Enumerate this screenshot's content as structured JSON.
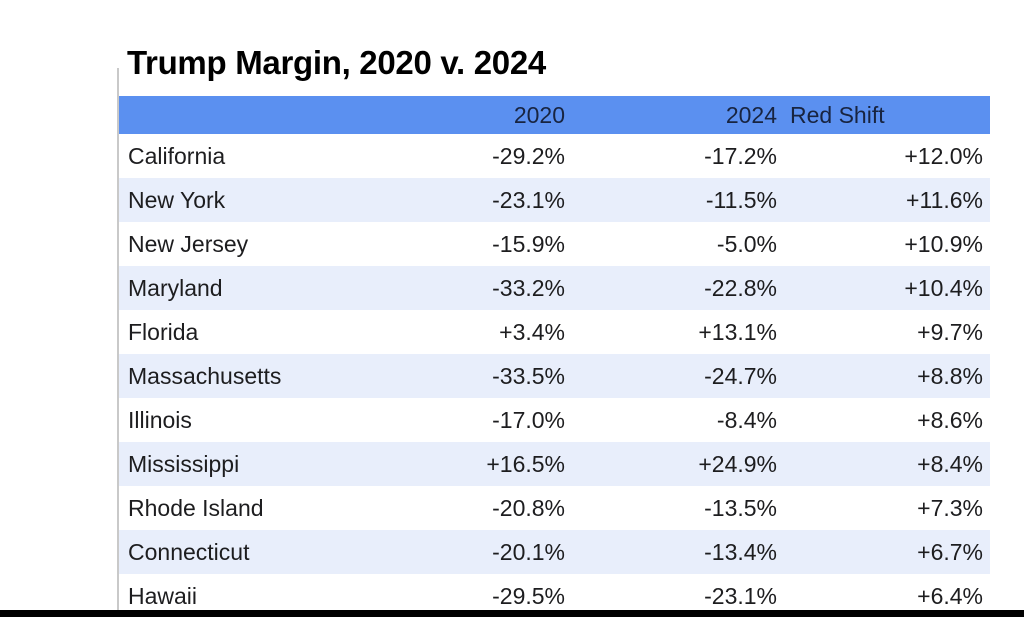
{
  "title": "Trump Margin, 2020 v. 2024",
  "chart_data": {
    "type": "table",
    "title": "Trump Margin, 2020 v. 2024",
    "columns": [
      "",
      "2020",
      "2024",
      "Red Shift"
    ],
    "rows": [
      [
        "California",
        "-29.2%",
        "-17.2%",
        "+12.0%"
      ],
      [
        "New York",
        "-23.1%",
        "-11.5%",
        "+11.6%"
      ],
      [
        "New Jersey",
        "-15.9%",
        "-5.0%",
        "+10.9%"
      ],
      [
        "Maryland",
        "-33.2%",
        "-22.8%",
        "+10.4%"
      ],
      [
        "Florida",
        "+3.4%",
        "+13.1%",
        "+9.7%"
      ],
      [
        "Massachusetts",
        "-33.5%",
        "-24.7%",
        "+8.8%"
      ],
      [
        "Illinois",
        "-17.0%",
        "-8.4%",
        "+8.6%"
      ],
      [
        "Mississippi",
        "+16.5%",
        "+24.9%",
        "+8.4%"
      ],
      [
        "Rhode Island",
        "-20.8%",
        "-13.5%",
        "+7.3%"
      ],
      [
        "Connecticut",
        "-20.1%",
        "-13.4%",
        "+6.7%"
      ],
      [
        "Hawaii",
        "-29.5%",
        "-23.1%",
        "+6.4%"
      ]
    ]
  },
  "colors": {
    "header_bg": "#5b90f0",
    "row_alt_bg": "#e8eefb",
    "header_text": "#182440",
    "body_text": "#1d1d1f",
    "bottom_bar": "#000000",
    "table_border": "#c9c9c9"
  }
}
